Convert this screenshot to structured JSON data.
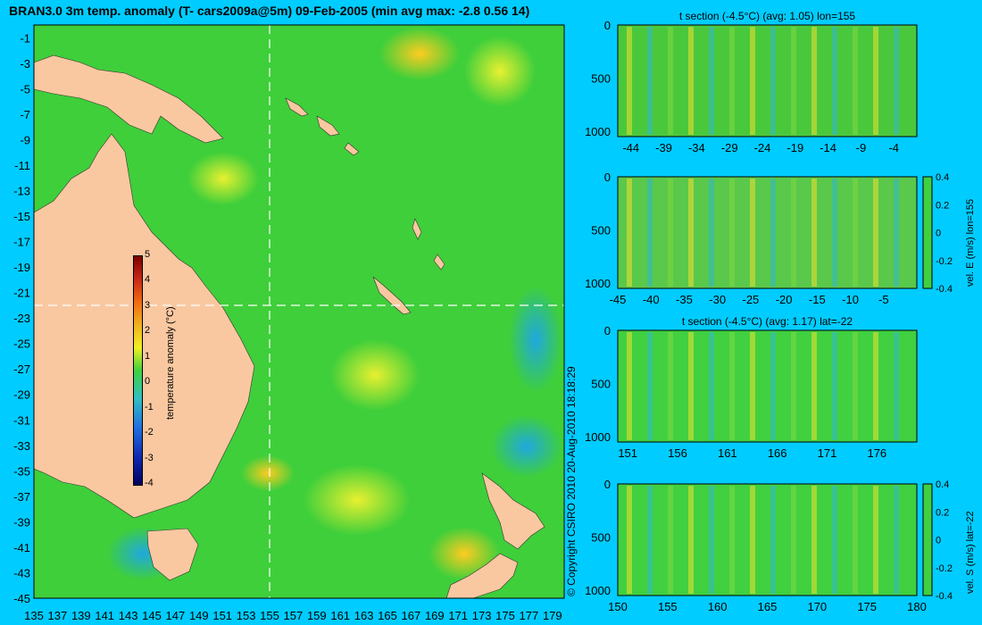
{
  "header": {
    "title": "BRAN3.0 3m temp. anomaly (T- cars2009a@5m) 09-Feb-2005 (min avg max: -2.8 0.56 14)"
  },
  "copyright": "© Copyright CSIRO 2010   20-Aug-2010 18:18:29",
  "map": {
    "lon_ticks": [
      "135",
      "137",
      "139",
      "141",
      "143",
      "145",
      "147",
      "149",
      "151",
      "153",
      "155",
      "157",
      "159",
      "161",
      "163",
      "165",
      "167",
      "169",
      "171",
      "173",
      "175",
      "177",
      "179"
    ],
    "lat_ticks": [
      "-1",
      "-3",
      "-5",
      "-7",
      "-9",
      "-11",
      "-13",
      "-15",
      "-17",
      "-19",
      "-21",
      "-23",
      "-25",
      "-27",
      "-29",
      "-31",
      "-33",
      "-35",
      "-37",
      "-39",
      "-41",
      "-43",
      "-45"
    ],
    "section_lon": "155",
    "section_lat": "-22",
    "colorbar": {
      "label": "temperature anomaly (°C)",
      "ticks": [
        "5",
        "4",
        "3",
        "2",
        "1",
        "0",
        "-1",
        "-2",
        "-3",
        "-4"
      ]
    },
    "colors": {
      "ocean": "#3fcf3a",
      "land": "#f9c8a0",
      "warm": "#f5e030",
      "cool": "#19b4d8"
    }
  },
  "panels": [
    {
      "id": "t-lon",
      "title": "t section (-4.5°C) (avg: 1.05) lon=155",
      "y_ticks": [
        "0",
        "500",
        "1000"
      ],
      "x_ticks": [
        "-44",
        "-39",
        "-34",
        "-29",
        "-24",
        "-19",
        "-14",
        "-9",
        "-4"
      ],
      "side_label": "",
      "cbar_ticks": []
    },
    {
      "id": "u-lon",
      "title": "",
      "y_ticks": [
        "0",
        "500",
        "1000"
      ],
      "x_ticks": [
        "-45",
        "-40",
        "-35",
        "-30",
        "-25",
        "-20",
        "-15",
        "-10",
        "-5"
      ],
      "side_label": "vel. E (m/s) lon=155",
      "cbar_ticks": [
        "0.4",
        "0.2",
        "0",
        "-0.2",
        "-0.4"
      ]
    },
    {
      "id": "t-lat",
      "title": "t section (-4.5°C) (avg: 1.17) lat=-22",
      "y_ticks": [
        "0",
        "500",
        "1000"
      ],
      "x_ticks": [
        "151",
        "156",
        "161",
        "166",
        "171",
        "176"
      ],
      "side_label": "",
      "cbar_ticks": []
    },
    {
      "id": "v-lat",
      "title": "",
      "y_ticks": [
        "0",
        "500",
        "1000"
      ],
      "x_ticks": [
        "150",
        "155",
        "160",
        "165",
        "170",
        "175",
        "180"
      ],
      "side_label": "vel. S (m/s) lat=-22",
      "cbar_ticks": [
        "0.4",
        "0.2",
        "0",
        "-0.2",
        "-0.4"
      ]
    }
  ],
  "chart_data": [
    {
      "type": "heatmap",
      "title": "BRAN3.0 3m temp. anomaly (T- cars2009a@5m) 09-Feb-2005 (min avg max: -2.8 0.56 14)",
      "xlabel": "",
      "ylabel": "",
      "xlim": [
        135,
        180
      ],
      "ylim": [
        -45,
        0
      ],
      "colorbar_label": "temperature anomaly (°C)",
      "colorbar_range": [
        -4,
        5
      ],
      "summary": {
        "min": -2.8,
        "avg": 0.56,
        "max": 14
      },
      "section_lines": {
        "lon": 155,
        "lat": -22
      }
    },
    {
      "type": "heatmap",
      "title": "t section (-4.5°C) (avg: 1.05) lon=155",
      "xlim": [
        -45,
        0
      ],
      "ylim": [
        1050,
        0
      ],
      "avg": 1.05
    },
    {
      "type": "heatmap",
      "title": "",
      "xlim": [
        -45,
        0
      ],
      "ylim": [
        1050,
        0
      ],
      "colorbar_label": "vel. E (m/s) lon=155",
      "colorbar_range": [
        -0.4,
        0.4
      ]
    },
    {
      "type": "heatmap",
      "title": "t section (-4.5°C) (avg: 1.17) lat=-22",
      "xlim": [
        150,
        180
      ],
      "ylim": [
        1050,
        0
      ],
      "avg": 1.17
    },
    {
      "type": "heatmap",
      "title": "",
      "xlim": [
        150,
        180
      ],
      "ylim": [
        1050,
        0
      ],
      "colorbar_label": "vel. S (m/s) lat=-22",
      "colorbar_range": [
        -0.4,
        0.4
      ]
    }
  ]
}
